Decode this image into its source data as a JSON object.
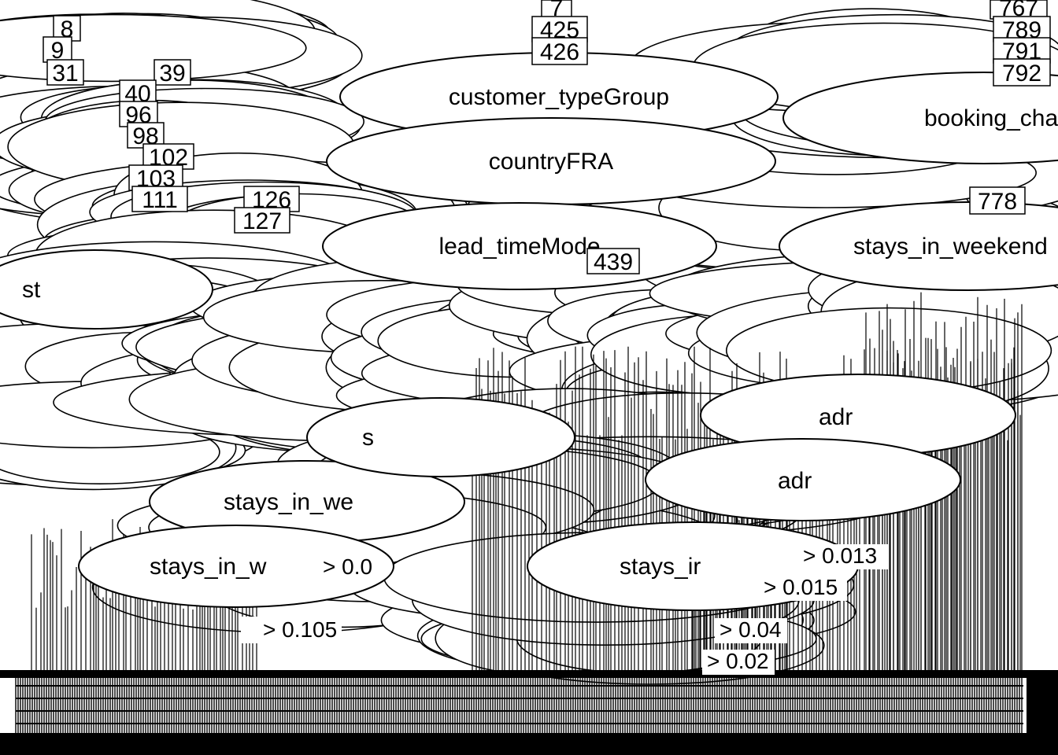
{
  "diagram": {
    "type": "decision-tree",
    "node_labels": [
      {
        "id": "n-customer-type",
        "text": "customer_typeGroup"
      },
      {
        "id": "n-country",
        "text": "countryFRA"
      },
      {
        "id": "n-lead-time",
        "text": "lead_timeMode"
      },
      {
        "id": "n-booking",
        "text": "booking_cha"
      },
      {
        "id": "n-weekend-right",
        "text": "stays_in_weekend"
      },
      {
        "id": "n-weekend-left-1",
        "text": "stays_in_we"
      },
      {
        "id": "n-weekend-left-2",
        "text": "stays_in_w"
      },
      {
        "id": "n-stays-mid",
        "text": "stays_ir"
      },
      {
        "id": "n-adr-1",
        "text": "adr"
      },
      {
        "id": "n-adr-2",
        "text": "adr"
      },
      {
        "id": "n-st",
        "text": "st"
      },
      {
        "id": "n-s",
        "text": "s"
      }
    ],
    "node_numbers": [
      "8",
      "9",
      "31",
      "39",
      "40",
      "96",
      "98",
      "102",
      "103",
      "111",
      "126",
      "127",
      "7",
      "425",
      "426",
      "439",
      "767",
      "789",
      "791",
      "792",
      "778"
    ],
    "edge_labels": [
      "> 0.105",
      "> 0.04",
      "> 0.02",
      "> 0.015",
      "> 0.013",
      "> 0.0"
    ]
  }
}
